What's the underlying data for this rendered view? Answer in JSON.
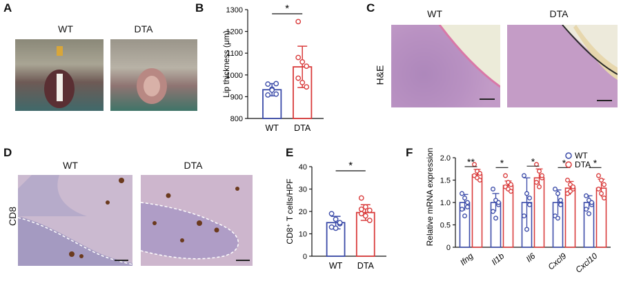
{
  "panels": {
    "A": {
      "letter": "A",
      "left_label": "WT",
      "right_label": "DTA"
    },
    "B": {
      "letter": "B"
    },
    "C": {
      "letter": "C",
      "left_label": "WT",
      "right_label": "DTA",
      "row_label": "H&E"
    },
    "D": {
      "letter": "D",
      "left_label": "WT",
      "right_label": "DTA",
      "row_label": "CD8"
    },
    "E": {
      "letter": "E"
    },
    "F": {
      "letter": "F"
    }
  },
  "colors": {
    "wt": "#3a4aa8",
    "dta": "#d93a3a"
  },
  "chart_data": [
    {
      "type": "bar",
      "panel": "B",
      "categories": [
        "WT",
        "DTA"
      ],
      "values": [
        932,
        1037
      ],
      "errors": [
        28,
        95
      ],
      "points": [
        [
          958,
          935,
          912,
          908,
          930,
          960
        ],
        [
          1245,
          1060,
          1040,
          985,
          965,
          945,
          1080
        ]
      ],
      "ylabel": "Lip thickness (μm)",
      "ylim": [
        800,
        1300
      ],
      "yticks": [
        "800",
        "900",
        "1000",
        "1100",
        "1200",
        "1300"
      ],
      "significance": "*"
    },
    {
      "type": "bar",
      "panel": "E",
      "categories": [
        "WT",
        "DTA"
      ],
      "values": [
        15,
        19.5
      ],
      "errors": [
        2.8,
        3.5
      ],
      "points": [
        [
          19,
          16.5,
          14.5,
          13,
          12.5,
          15
        ],
        [
          26,
          22,
          20.5,
          19,
          18,
          16,
          21
        ]
      ],
      "ylabel": "CD8⁺ T cells/HPF",
      "ylim": [
        0,
        40
      ],
      "yticks": [
        "0",
        "10",
        "20",
        "30",
        "40"
      ],
      "significance": "*"
    },
    {
      "type": "bar",
      "panel": "F",
      "categories": [
        "Ifng",
        "Il1b",
        "Il6",
        "Cxcl9",
        "Cxcl10"
      ],
      "series": [
        {
          "name": "WT",
          "values": [
            1.0,
            1.0,
            1.0,
            1.0,
            1.0
          ],
          "errors": [
            0.18,
            0.2,
            0.55,
            0.28,
            0.15
          ],
          "points": [
            [
              1.2,
              1.1,
              1.0,
              0.85,
              0.7,
              0.9
            ],
            [
              1.3,
              1.05,
              0.95,
              0.8,
              0.65,
              1.0
            ],
            [
              1.6,
              1.2,
              0.95,
              0.7,
              0.4,
              1.1
            ],
            [
              1.3,
              1.2,
              0.95,
              0.7,
              0.65,
              1.05
            ],
            [
              1.15,
              1.05,
              0.95,
              0.85,
              0.75,
              1.0
            ]
          ]
        },
        {
          "name": "DTA",
          "values": [
            1.62,
            1.38,
            1.55,
            1.32,
            1.32
          ],
          "errors": [
            0.12,
            0.1,
            0.2,
            0.15,
            0.2
          ],
          "points": [
            [
              1.85,
              1.7,
              1.65,
              1.6,
              1.55,
              1.5
            ],
            [
              1.6,
              1.45,
              1.4,
              1.35,
              1.3,
              1.25
            ],
            [
              1.85,
              1.7,
              1.55,
              1.45,
              1.35,
              1.6
            ],
            [
              1.5,
              1.4,
              1.3,
              1.2,
              1.25,
              1.35
            ],
            [
              1.6,
              1.5,
              1.4,
              1.3,
              1.2,
              1.1
            ]
          ]
        }
      ],
      "ylabel": "Relative mRNA expression",
      "ylim": [
        0,
        2.0
      ],
      "yticks": [
        "0",
        "0.5",
        "1.0",
        "1.5",
        "2.0"
      ],
      "significance": [
        "**",
        "*",
        "*",
        "*",
        "*"
      ],
      "legend": "top-right"
    }
  ]
}
